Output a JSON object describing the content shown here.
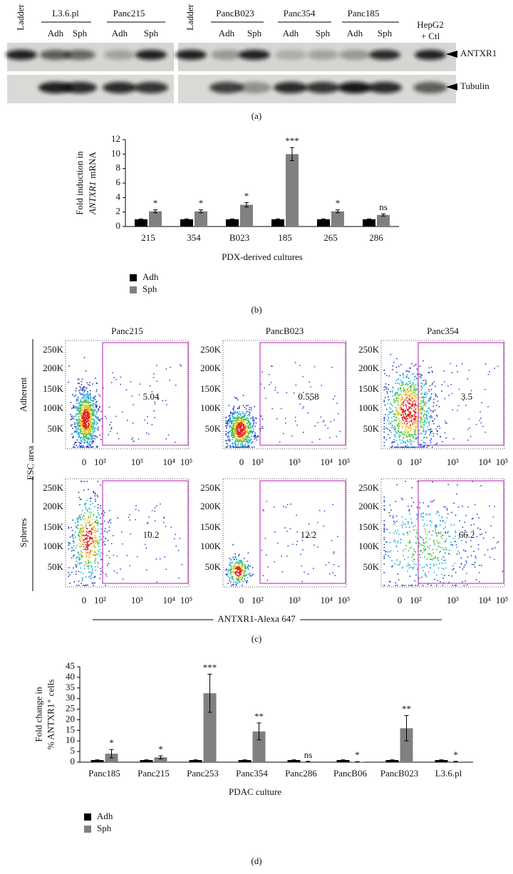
{
  "panel_a": {
    "ladder_labels": [
      "Ladder",
      "Ladder"
    ],
    "groups": [
      {
        "name": "L3.6.pl",
        "lanes": [
          "Adh",
          "Sph"
        ]
      },
      {
        "name": "Panc215",
        "lanes": [
          "Adh",
          "Sph"
        ]
      },
      {
        "name": "PancB023",
        "lanes": [
          "Adh",
          "Sph"
        ]
      },
      {
        "name": "Panc354",
        "lanes": [
          "Adh",
          "Sph"
        ]
      },
      {
        "name": "Panc185",
        "lanes": [
          "Adh",
          "Sph"
        ]
      }
    ],
    "control": [
      "HepG2",
      "+ Ctl"
    ],
    "bands": [
      "ANTXR1",
      "Tubulin"
    ],
    "label": "(a)"
  },
  "panel_c": {
    "columns": [
      "Panc215",
      "PancB023",
      "Panc354"
    ],
    "rows": [
      "Adherent",
      "Spheres"
    ],
    "ylabel": "FSC area",
    "xlabel": "ANTXR1-Alexa 647",
    "yticks": [
      "250K",
      "200K",
      "150K",
      "100K",
      "50K"
    ],
    "xticks": [
      "0",
      "10²",
      "10³",
      "10⁴",
      "10⁵"
    ],
    "gates": [
      [
        5.04,
        0.558,
        3.5
      ],
      [
        10.2,
        12.2,
        66.2
      ]
    ],
    "label": "(c)"
  },
  "chart_data": [
    {
      "type": "bar",
      "panel_label": "(b)",
      "ylabel": [
        [
          "Fold induction in"
        ],
        [
          "ANTXR1",
          "mRNA"
        ]
      ],
      "xlabel": "PDX-derived cultures",
      "categories": [
        "215",
        "354",
        "B023",
        "185",
        "265",
        "286"
      ],
      "series": [
        {
          "name": "Adh",
          "color": "#000000",
          "values": [
            1,
            1,
            1,
            1,
            1,
            1
          ],
          "errors": [
            0.05,
            0.05,
            0.05,
            0.05,
            0.05,
            0.05
          ]
        },
        {
          "name": "Sph",
          "color": "#808080",
          "values": [
            2.1,
            2.1,
            3,
            10,
            2.1,
            1.6
          ],
          "errors": [
            0.2,
            0.2,
            0.3,
            0.9,
            0.2,
            0.15
          ]
        }
      ],
      "significance": [
        "*",
        "*",
        "*",
        "***",
        "*",
        "ns"
      ],
      "ylim": [
        0,
        12
      ],
      "yticks": [
        0,
        2,
        4,
        6,
        8,
        10,
        12
      ],
      "grid": false,
      "legend": "bottom-left"
    },
    {
      "type": "bar",
      "panel_label": "(d)",
      "ylabel": [
        [
          "Fold change in"
        ],
        [
          "% ANTXR1⁺ cells"
        ]
      ],
      "xlabel": "PDAC culture",
      "categories": [
        "Panc185",
        "Panc215",
        "Panc253",
        "Panc354",
        "Panc286",
        "PancB06",
        "PancB023",
        "L3.6.pl"
      ],
      "series": [
        {
          "name": "Adh",
          "color": "#000000",
          "values": [
            1,
            1,
            1,
            1,
            1,
            1,
            1,
            1
          ],
          "errors": [
            0.1,
            0.1,
            0.1,
            0.1,
            0.1,
            0.1,
            0.1,
            0.1
          ]
        },
        {
          "name": "Sph",
          "color": "#808080",
          "values": [
            4,
            2.3,
            32.5,
            14.5,
            0.3,
            0.2,
            16,
            0.3
          ],
          "errors": [
            2,
            0.7,
            9,
            4,
            0.1,
            0.05,
            6,
            0.1
          ]
        }
      ],
      "significance": [
        "*",
        "*",
        "***",
        "**",
        "ns",
        "*",
        "**",
        "*"
      ],
      "ylim": [
        0,
        45
      ],
      "yticks": [
        0,
        5,
        10,
        15,
        20,
        25,
        30,
        35,
        40,
        45
      ],
      "grid": false,
      "legend": "bottom-left"
    }
  ]
}
